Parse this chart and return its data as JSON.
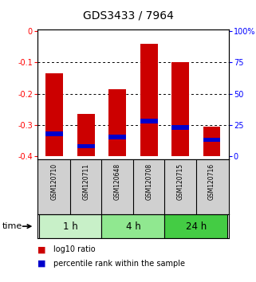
{
  "title": "GDS3433 / 7964",
  "samples": [
    "GSM120710",
    "GSM120711",
    "GSM120648",
    "GSM120708",
    "GSM120715",
    "GSM120716"
  ],
  "groups": [
    {
      "label": "1 h",
      "indices": [
        0,
        1
      ],
      "color": "#c8f0c8"
    },
    {
      "label": "4 h",
      "indices": [
        2,
        3
      ],
      "color": "#90e890"
    },
    {
      "label": "24 h",
      "indices": [
        4,
        5
      ],
      "color": "#44cc44"
    }
  ],
  "log10_ratio": [
    -0.135,
    -0.265,
    -0.185,
    -0.04,
    -0.1,
    -0.305
  ],
  "percentile_rank_y": [
    -0.335,
    -0.375,
    -0.345,
    -0.295,
    -0.315,
    -0.355
  ],
  "ylim": [
    -0.41,
    0.005
  ],
  "yticks": [
    0.0,
    -0.1,
    -0.2,
    -0.3,
    -0.4
  ],
  "ytick_labels": [
    "0",
    "-0.1",
    "-0.2",
    "-0.3",
    "-0.4"
  ],
  "right_ytick_labels": [
    "100%",
    "75",
    "50",
    "25",
    "0"
  ],
  "bar_color": "#cc0000",
  "pct_color": "#0000cc",
  "bar_width": 0.55,
  "title_fontsize": 10,
  "tick_fontsize": 7,
  "sample_fontsize": 5.5,
  "group_fontsize": 8.5
}
